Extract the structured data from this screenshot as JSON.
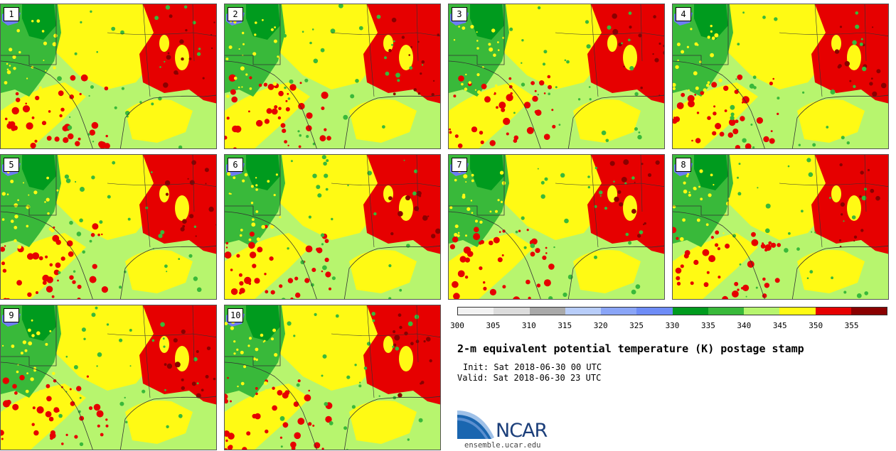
{
  "panels": [
    {
      "label": "1"
    },
    {
      "label": "2"
    },
    {
      "label": "3"
    },
    {
      "label": "4"
    },
    {
      "label": "5"
    },
    {
      "label": "6"
    },
    {
      "label": "7"
    },
    {
      "label": "8"
    },
    {
      "label": "9"
    },
    {
      "label": "10"
    }
  ],
  "colorbar": {
    "ticks": [
      "300",
      "305",
      "310",
      "315",
      "320",
      "325",
      "330",
      "335",
      "340",
      "345",
      "350",
      "355"
    ],
    "colors": [
      "#f2f2f2",
      "#dcdcdc",
      "#a9a9a9",
      "#b8cdf9",
      "#8aa5f7",
      "#6e8cf6",
      "#009b1e",
      "#39b93a",
      "#b7f56e",
      "#fffa14",
      "#e60000",
      "#8a0000"
    ]
  },
  "title": "2-m equivalent potential temperature (K) postage stamp",
  "init": "Init: Sat 2018-06-30 00 UTC",
  "valid": "Valid: Sat 2018-06-30 23 UTC",
  "logo": {
    "name": "NCAR",
    "url": "ensemble.ucar.edu"
  },
  "map_colors": {
    "lake": "#6e7cf4",
    "green_dark": "#009b1e",
    "green": "#39b93a",
    "light_green": "#b7f56e",
    "yellow": "#fffa14",
    "red": "#e60000",
    "dark_red": "#8a0000",
    "boundary": "#333333"
  }
}
